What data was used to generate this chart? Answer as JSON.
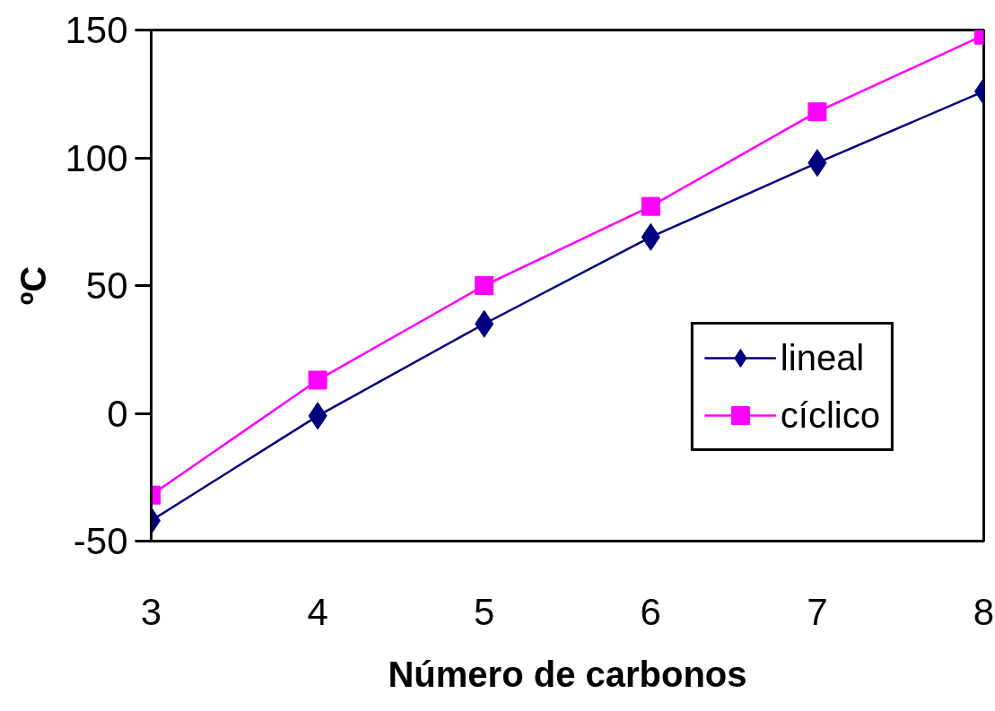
{
  "chart_data": {
    "type": "line",
    "xlabel": "Número de carbonos",
    "ylabel": "ºC",
    "x": [
      3,
      4,
      5,
      6,
      7,
      8
    ],
    "xlim": [
      3,
      8
    ],
    "xticks": [
      3,
      4,
      5,
      6,
      7,
      8
    ],
    "ylim": [
      -50,
      150
    ],
    "yticks": [
      -50,
      0,
      50,
      100,
      150
    ],
    "legend": "bottom right",
    "series": [
      {
        "name": "lineal",
        "color": "#000080",
        "marker": "diamond",
        "values": [
          -42,
          -1,
          35,
          69,
          98,
          126
        ]
      },
      {
        "name": "cíclico",
        "color": "#ff00ff",
        "marker": "square",
        "values": [
          -32,
          13,
          50,
          81,
          118,
          148
        ]
      }
    ]
  }
}
